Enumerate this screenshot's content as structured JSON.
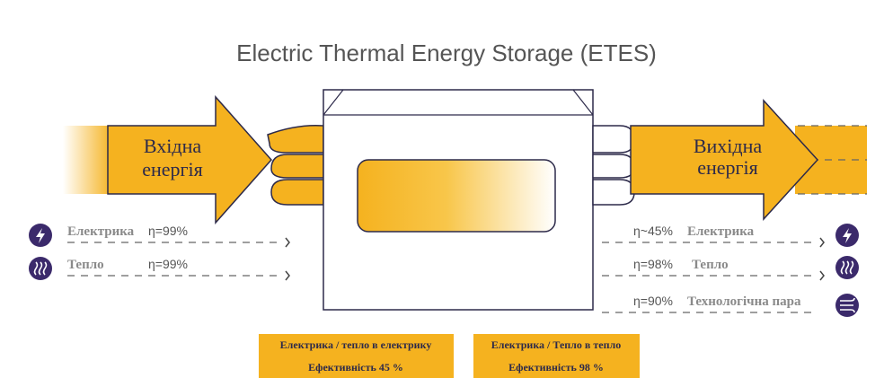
{
  "title": "Electric Thermal Energy Storage (ETES)",
  "input_arrow": {
    "lines": [
      "Вхідна",
      "енергія"
    ]
  },
  "output_arrow": {
    "lines": [
      "Вихідна",
      "енергія"
    ]
  },
  "inputs": [
    {
      "label": "Електрика",
      "efficiency": "η=99%"
    },
    {
      "label": "Тепло",
      "efficiency": "η=99%"
    }
  ],
  "outputs": [
    {
      "efficiency": "η~45%",
      "label": "Електрика"
    },
    {
      "efficiency": "η=98%",
      "label": "Тепло"
    },
    {
      "efficiency": "η=90%",
      "label": "Технологічна пара"
    }
  ],
  "boxes": [
    {
      "title": "Електрика / тепло в електрику",
      "efficiency": "Ефективність 45 %"
    },
    {
      "title": "Електрика / Тепло в тепло",
      "efficiency": "Ефективність 98 %"
    }
  ]
}
